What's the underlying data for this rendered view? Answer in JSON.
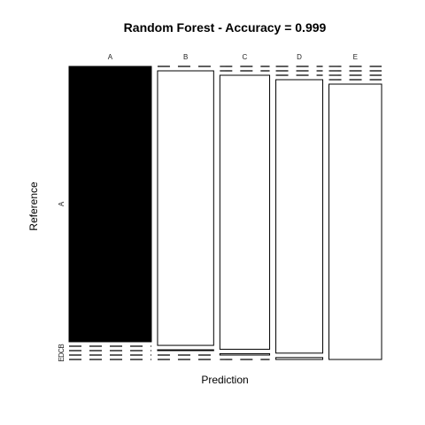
{
  "chart_data": {
    "type": "mosaic",
    "title": "Random Forest - Accuracy = 0.999",
    "xlabel": "Prediction",
    "ylabel": "Reference",
    "x_categories": [
      "A",
      "B",
      "C",
      "D",
      "E"
    ],
    "y_categories": [
      "A",
      "B",
      "C",
      "D",
      "E"
    ],
    "y_tick_labels_shown": [
      "A",
      "B",
      "C",
      "D",
      "E"
    ],
    "highlighted_category": "A",
    "column_proportions": [
      0.286,
      0.195,
      0.173,
      0.163,
      0.183
    ],
    "matrix": [
      [
        1.0,
        0.0,
        0.0,
        0.0,
        0.0
      ],
      [
        0.0,
        0.997,
        0.003,
        0.0,
        0.0
      ],
      [
        0.0,
        0.0,
        0.995,
        0.005,
        0.0
      ],
      [
        0.0,
        0.0,
        0.0,
        0.993,
        0.007
      ],
      [
        0.0,
        0.0,
        0.0,
        0.0,
        1.0
      ]
    ]
  }
}
